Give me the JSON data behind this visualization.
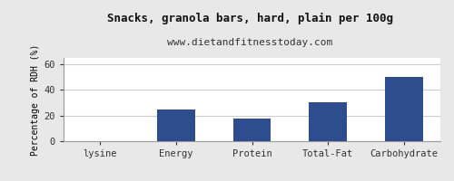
{
  "title": "Snacks, granola bars, hard, plain per 100g",
  "subtitle": "www.dietandfitnesstoday.com",
  "categories": [
    "lysine",
    "Energy",
    "Protein",
    "Total-Fat",
    "Carbohydrate"
  ],
  "values": [
    0,
    24.5,
    18,
    30.5,
    50
  ],
  "bar_color": "#2e4d8e",
  "ylabel": "Percentage of RDH (%)",
  "ylim": [
    0,
    65
  ],
  "yticks": [
    0,
    20,
    40,
    60
  ],
  "background_color": "#e8e8e8",
  "plot_bg_color": "#ffffff",
  "title_fontsize": 9,
  "subtitle_fontsize": 8,
  "ylabel_fontsize": 7,
  "tick_fontsize": 7.5,
  "grid_color": "#cccccc",
  "border_color": "#999999"
}
